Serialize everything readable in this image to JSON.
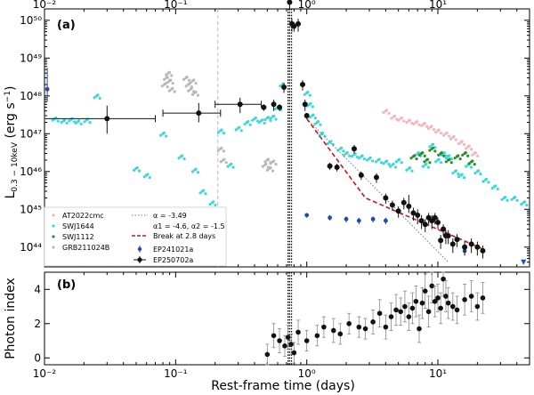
{
  "chart_data": [
    {
      "panel": "top",
      "type": "scatter",
      "panel_label": "(a)",
      "xlabel": "Rest-frame time (days)",
      "ylabel": "L 0.3−10keV (erg s⁻¹)",
      "xscale": "log",
      "yscale": "log",
      "xlim": [
        0.01,
        50
      ],
      "ylim": [
        3e+43,
        2e+50
      ],
      "x_ticks": [
        {
          "value": 0.01,
          "label": "10⁻²"
        },
        {
          "value": 0.1,
          "label": "10⁻¹"
        },
        {
          "value": 1,
          "label": "10⁰"
        },
        {
          "value": 10,
          "label": "10¹"
        }
      ],
      "y_ticks": [
        {
          "value": 1e+44,
          "label": "10⁴⁴"
        },
        {
          "value": 1e+45,
          "label": "10⁴⁵"
        },
        {
          "value": 1e+46,
          "label": "10⁴⁶"
        },
        {
          "value": 1e+47,
          "label": "10⁴⁷"
        },
        {
          "value": 1e+48,
          "label": "10⁴⁸"
        },
        {
          "value": 1e+49,
          "label": "10⁴⁹"
        },
        {
          "value": 1e+50,
          "label": "10⁵⁰"
        }
      ],
      "legend_position": "lower-left",
      "series": [
        {
          "name": "AT2022cmc",
          "marker": "dot",
          "color": "#f4b6bd",
          "x": [
            4.0,
            4.6,
            5.2,
            6.0,
            6.8,
            7.8,
            8.8,
            10.0,
            11.5,
            13.0,
            15.0,
            17.0,
            19.0
          ],
          "y": [
            4e+47,
            2.8e+47,
            2.5e+47,
            2.2e+47,
            2e+47,
            1.8e+47,
            1.5e+47,
            1.2e+47,
            1e+47,
            8e+46,
            6e+46,
            4.5e+46,
            3e+46
          ]
        },
        {
          "name": "SWJ1644",
          "marker": "dot",
          "color": "#3fd6dc",
          "x": [
            0.012,
            0.014,
            0.016,
            0.018,
            0.021,
            0.025,
            0.05,
            0.06,
            0.08,
            0.11,
            0.14,
            0.16,
            0.19,
            0.22,
            0.26,
            0.3,
            0.35,
            0.4,
            0.45,
            0.5,
            0.55,
            0.6,
            0.65,
            1.0,
            1.05,
            1.1,
            1.2,
            1.3,
            1.5,
            1.8,
            2.0,
            2.3,
            2.6,
            3.0,
            3.5,
            4.0,
            4.5,
            5.0,
            6.0,
            7.0,
            8.0,
            9.0,
            10.0,
            11.0,
            12.0,
            13.5,
            15.0,
            17.0,
            20.0,
            23.0,
            27.0,
            32.0,
            38.0,
            45.0
          ],
          "y": [
            2.5e+47,
            2.2e+47,
            2.4e+47,
            2.1e+47,
            2.3e+47,
            1e+48,
            1.2e+46,
            8e+45,
            1e+47,
            2.5e+46,
            1.1e+46,
            3e+45,
            1.5e+45,
            1.2e+47,
            1.5e+46,
            1.4e+47,
            2e+47,
            2.5e+47,
            2.2e+47,
            2.6e+47,
            2.8e+47,
            5e+47,
            2e+48,
            1.2e+48,
            6e+47,
            3e+47,
            2e+47,
            1e+47,
            6e+46,
            4e+46,
            3e+46,
            2.8e+46,
            2.5e+46,
            2.2e+46,
            2e+46,
            1.8e+46,
            1.5e+46,
            2e+46,
            1.2e+46,
            3e+46,
            1.5e+46,
            5e+46,
            2e+46,
            3e+46,
            2.5e+46,
            1e+46,
            8e+45,
            1.5e+46,
            1e+46,
            6e+45,
            4e+45,
            2e+45,
            2e+45,
            1.5e+45
          ]
        },
        {
          "name": "SWJ1112",
          "marker": "dot",
          "color": "#2e8b2e",
          "x": [
            6.5,
            7.5,
            8.2,
            9.0,
            10.5,
            12.0,
            14.0,
            16.0,
            18.0
          ],
          "y": [
            2.5e+46,
            3e+46,
            2e+46,
            4e+46,
            3e+46,
            2e+46,
            2.5e+46,
            3e+46,
            1.8e+46
          ]
        },
        {
          "name": "GRB211024B",
          "marker": "dot",
          "color": "#b8b8b8",
          "x": [
            0.082,
            0.085,
            0.088,
            0.09,
            0.093,
            0.12,
            0.125,
            0.13,
            0.135,
            0.14,
            0.22,
            0.23,
            0.48,
            0.5,
            0.52,
            0.55
          ],
          "y": [
            2e+48,
            3e+48,
            4e+48,
            2.5e+48,
            1.5e+48,
            3e+48,
            2e+48,
            1.5e+48,
            2.5e+48,
            1.2e+48,
            4e+46,
            2e+46,
            1.5e+46,
            2e+46,
            1.2e+46,
            1.8e+46
          ]
        },
        {
          "name": "EP241021a",
          "marker": "errorbar-point",
          "color": "#2848b0",
          "x": [
            0.0105,
            1.0,
            1.5,
            2.0,
            2.5,
            3.2,
            4.0,
            16.0,
            45.0
          ],
          "y": [
            1.5e+48,
            7e+44,
            6e+44,
            5.5e+44,
            5e+44,
            5.5e+44,
            5e+44,
            8e+43,
            4e+43
          ],
          "yerr_low": [
            8e+47,
            1e+44,
            1e+44,
            1e+44,
            1e+44,
            1e+44,
            1e+44,
            2e+43,
            0
          ],
          "yerr_high": [
            4e+48,
            1e+44,
            1e+44,
            1e+44,
            1e+44,
            1e+44,
            1e+44,
            2e+43,
            0
          ]
        },
        {
          "name": "EP250702a",
          "marker": "errorbar-point",
          "color": "#111111",
          "x": [
            0.03,
            0.15,
            0.31,
            0.47,
            0.56,
            0.62,
            0.67,
            0.74,
            0.77,
            0.8,
            0.86,
            0.93,
            0.97,
            1.0,
            1.5,
            1.7,
            2.3,
            2.6,
            3.4,
            4.0,
            4.5,
            5.0,
            5.5,
            6.0,
            6.5,
            7.0,
            7.5,
            8.0,
            8.5,
            9.0,
            9.5,
            10.0,
            10.5,
            11.0,
            11.5,
            12.0,
            13.0,
            14.0,
            16.0,
            18.0,
            20.0,
            22.0
          ],
          "y": [
            2.5e+47,
            3.5e+47,
            6e+47,
            5e+47,
            6e+47,
            5e+47,
            1.7e+48,
            3e+50,
            8e+49,
            7e+49,
            8e+49,
            2e+48,
            6e+47,
            3e+47,
            1.4e+46,
            1.3e+46,
            4e+46,
            8e+45,
            7e+45,
            2e+45,
            1.3e+45,
            9e+44,
            1.5e+45,
            1.2e+45,
            8e+44,
            7e+44,
            5e+44,
            4e+44,
            6e+44,
            5e+44,
            6e+44,
            4.5e+44,
            1.5e+44,
            3e+44,
            2e+44,
            2e+44,
            1.2e+44,
            1.6e+44,
            1e+44,
            1.2e+44,
            1e+44,
            8e+43
          ],
          "xerr_low": [
            0.02,
            0.07,
            0.11,
            0.0,
            0.0,
            0.0,
            0.0,
            0.0,
            0.0,
            0.0,
            0.0,
            0.0,
            0.0,
            0.0,
            0.0,
            0.0,
            0.0,
            0.0,
            0.0,
            0.0,
            0.0,
            0.0,
            0.0,
            0.0,
            0.0,
            0.0,
            0.0,
            0.0,
            0.0,
            0.0,
            0.0,
            0.0,
            0.0,
            0.0,
            0.0,
            0.0,
            0.0,
            0.0,
            0.0,
            0.0,
            0.0,
            0.0
          ],
          "xerr_high": [
            0.04,
            0.07,
            0.14,
            0.0,
            0.0,
            0.0,
            0.0,
            0.0,
            0.0,
            0.0,
            0.0,
            0.0,
            0.0,
            0.0,
            0.0,
            0.0,
            0.0,
            0.0,
            0.0,
            0.0,
            0.0,
            0.0,
            0.0,
            0.0,
            0.0,
            0.0,
            0.0,
            0.0,
            0.0,
            0.0,
            0.0,
            0.0,
            0.0,
            0.0,
            0.0,
            0.0,
            0.0,
            0.0,
            0.0,
            0.0,
            0.0,
            0.0
          ],
          "yerr_low": [
            1.5e+47,
            1.5e+47,
            2.5e+47,
            1e+47,
            2e+47,
            1e+47,
            5e+47,
            1e+50,
            3e+49,
            2e+49,
            3e+49,
            6e+47,
            2e+47,
            5e+46,
            3e+45,
            3e+45,
            1e+46,
            2e+45,
            2e+45,
            6e+44,
            4e+44,
            3e+44,
            5e+44,
            4e+44,
            3e+44,
            3e+44,
            2e+44,
            1.5e+44,
            2e+44,
            2e+44,
            2e+44,
            1.5e+44,
            6e+43,
            1e+44,
            8e+43,
            8e+43,
            5e+43,
            6e+43,
            4e+43,
            5e+43,
            4e+43,
            3e+43
          ],
          "yerr_high": [
            3e+47,
            3e+47,
            3e+47,
            1e+47,
            2e+47,
            1e+47,
            5e+47,
            1e+50,
            3e+49,
            2e+49,
            3e+49,
            6e+47,
            2e+47,
            5e+46,
            3e+45,
            3e+45,
            1e+46,
            2e+45,
            2e+45,
            6e+44,
            4e+44,
            3e+44,
            5e+44,
            1.2e+45,
            3e+44,
            3e+44,
            2e+44,
            1.5e+44,
            2e+44,
            2e+44,
            2e+44,
            1.5e+44,
            6e+43,
            1e+44,
            8e+43,
            8e+43,
            5e+43,
            6e+43,
            4e+43,
            5e+43,
            4e+43,
            3e+43
          ]
        }
      ],
      "lines": [
        {
          "name": "α = -3.49",
          "style": "dotted",
          "color": "#777777",
          "x": [
            1.0,
            12.0
          ],
          "y": [
            2.5e+47,
            4e+43
          ]
        },
        {
          "name": "Break at 2.8 days",
          "legend_text": "α1 = -4.6, α2 = -1.5",
          "style": "dashed",
          "color": "#c0181f",
          "x": [
            1.0,
            2.8,
            22.0
          ],
          "y": [
            2.5e+47,
            2e+45,
            9e+43
          ]
        }
      ],
      "vlines": [
        {
          "x": 0.21,
          "style": "dashed",
          "color": "#aaaaaa"
        },
        {
          "x": 0.72,
          "style": "dotted",
          "color": "#000000"
        },
        {
          "x": 0.74,
          "style": "dotted",
          "color": "#000000"
        },
        {
          "x": 0.765,
          "style": "dotted",
          "color": "#000000"
        }
      ]
    },
    {
      "panel": "bottom",
      "type": "scatter",
      "panel_label": "(b)",
      "xlabel": "Rest-frame time (days)",
      "ylabel": "Photon index",
      "xscale": "log",
      "xlim": [
        0.01,
        50
      ],
      "ylim": [
        -0.4,
        5.0
      ],
      "y_ticks": [
        {
          "value": 0,
          "label": "0"
        },
        {
          "value": 2,
          "label": "2"
        },
        {
          "value": 4,
          "label": "4"
        }
      ],
      "series": [
        {
          "name": "EP250702a",
          "marker": "errorbar-point",
          "color": "#111111",
          "x": [
            0.5,
            0.56,
            0.62,
            0.68,
            0.72,
            0.76,
            0.8,
            0.86,
            1.0,
            1.2,
            1.35,
            1.6,
            1.8,
            2.1,
            2.5,
            2.8,
            3.2,
            3.6,
            4.0,
            4.4,
            4.8,
            5.2,
            5.6,
            6.0,
            6.4,
            6.8,
            7.2,
            7.6,
            8.0,
            8.5,
            9.0,
            9.5,
            10.0,
            10.5,
            11.0,
            11.5,
            12.0,
            13.0,
            14.0,
            16.0,
            18.0,
            20.0,
            22.0
          ],
          "y": [
            0.2,
            1.3,
            1.0,
            0.7,
            1.2,
            0.8,
            0.3,
            1.5,
            1.0,
            1.3,
            1.8,
            1.6,
            1.4,
            2.0,
            1.8,
            1.7,
            2.1,
            2.6,
            1.8,
            2.4,
            2.8,
            2.7,
            3.0,
            2.4,
            2.9,
            3.3,
            1.7,
            3.2,
            3.9,
            2.7,
            4.2,
            3.3,
            3.5,
            2.9,
            4.6,
            3.6,
            3.2,
            3.0,
            2.8,
            3.4,
            3.6,
            3.0,
            3.5
          ],
          "yerr_low": [
            0.6,
            0.7,
            0.7,
            0.6,
            0.7,
            0.6,
            0.6,
            0.7,
            0.6,
            0.6,
            0.6,
            0.7,
            0.6,
            0.6,
            0.6,
            0.6,
            0.7,
            0.8,
            0.7,
            0.8,
            0.9,
            0.8,
            0.9,
            0.8,
            0.9,
            0.9,
            0.8,
            0.9,
            1.0,
            0.9,
            1.0,
            0.9,
            0.8,
            0.9,
            1.0,
            0.9,
            0.9,
            0.8,
            0.8,
            0.9,
            0.9,
            0.8,
            0.9
          ],
          "yerr_high": [
            0.6,
            0.7,
            0.7,
            0.6,
            0.7,
            0.6,
            0.6,
            0.7,
            0.6,
            0.6,
            0.6,
            0.7,
            0.6,
            0.6,
            0.6,
            0.6,
            0.7,
            0.8,
            0.7,
            0.8,
            0.9,
            0.8,
            0.9,
            0.8,
            0.9,
            0.9,
            0.8,
            0.9,
            1.0,
            0.9,
            1.0,
            0.9,
            0.8,
            0.9,
            1.0,
            0.9,
            0.9,
            0.8,
            0.8,
            0.9,
            0.9,
            0.8,
            0.9
          ]
        }
      ],
      "vlines": [
        {
          "x": 0.72,
          "style": "dotted",
          "color": "#000000"
        },
        {
          "x": 0.74,
          "style": "dotted",
          "color": "#000000"
        },
        {
          "x": 0.765,
          "style": "dotted",
          "color": "#000000"
        }
      ]
    }
  ]
}
